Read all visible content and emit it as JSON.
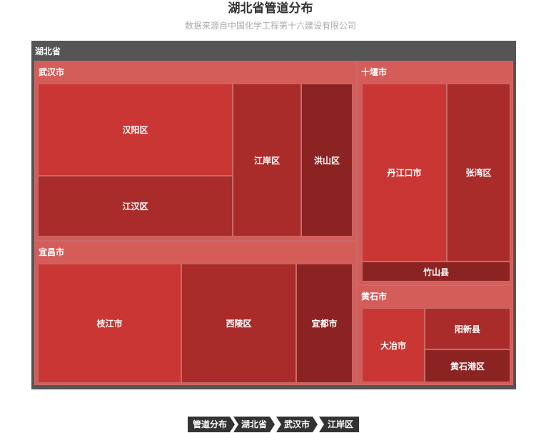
{
  "title": "湖北省管道分布",
  "subtitle": "数据来源自中国化学工程第十六建设有限公司",
  "colors": {
    "root_bg": "#555555",
    "group_bg": "#d45d59",
    "leaf_shades": [
      "#c93633",
      "#a92c2a",
      "#8b2322"
    ],
    "border": "#c96b68",
    "breadcrumb_bg": "#333333"
  },
  "chart_data": {
    "type": "treemap",
    "root": "湖北省",
    "groups": [
      {
        "name": "武汉市",
        "children": [
          "汉阳区",
          "江汉区",
          "江岸区",
          "洪山区"
        ]
      },
      {
        "name": "宜昌市",
        "children": [
          "枝江市",
          "西陵区",
          "宜都市"
        ]
      },
      {
        "name": "十堰市",
        "children": [
          "丹江口市",
          "张湾区",
          "竹山县"
        ]
      },
      {
        "name": "黄石市",
        "children": [
          "大冶市",
          "阳新县",
          "黄石港区"
        ]
      }
    ]
  },
  "breadcrumb": [
    "管道分布",
    "湖北省",
    "武汉市",
    "江岸区"
  ]
}
